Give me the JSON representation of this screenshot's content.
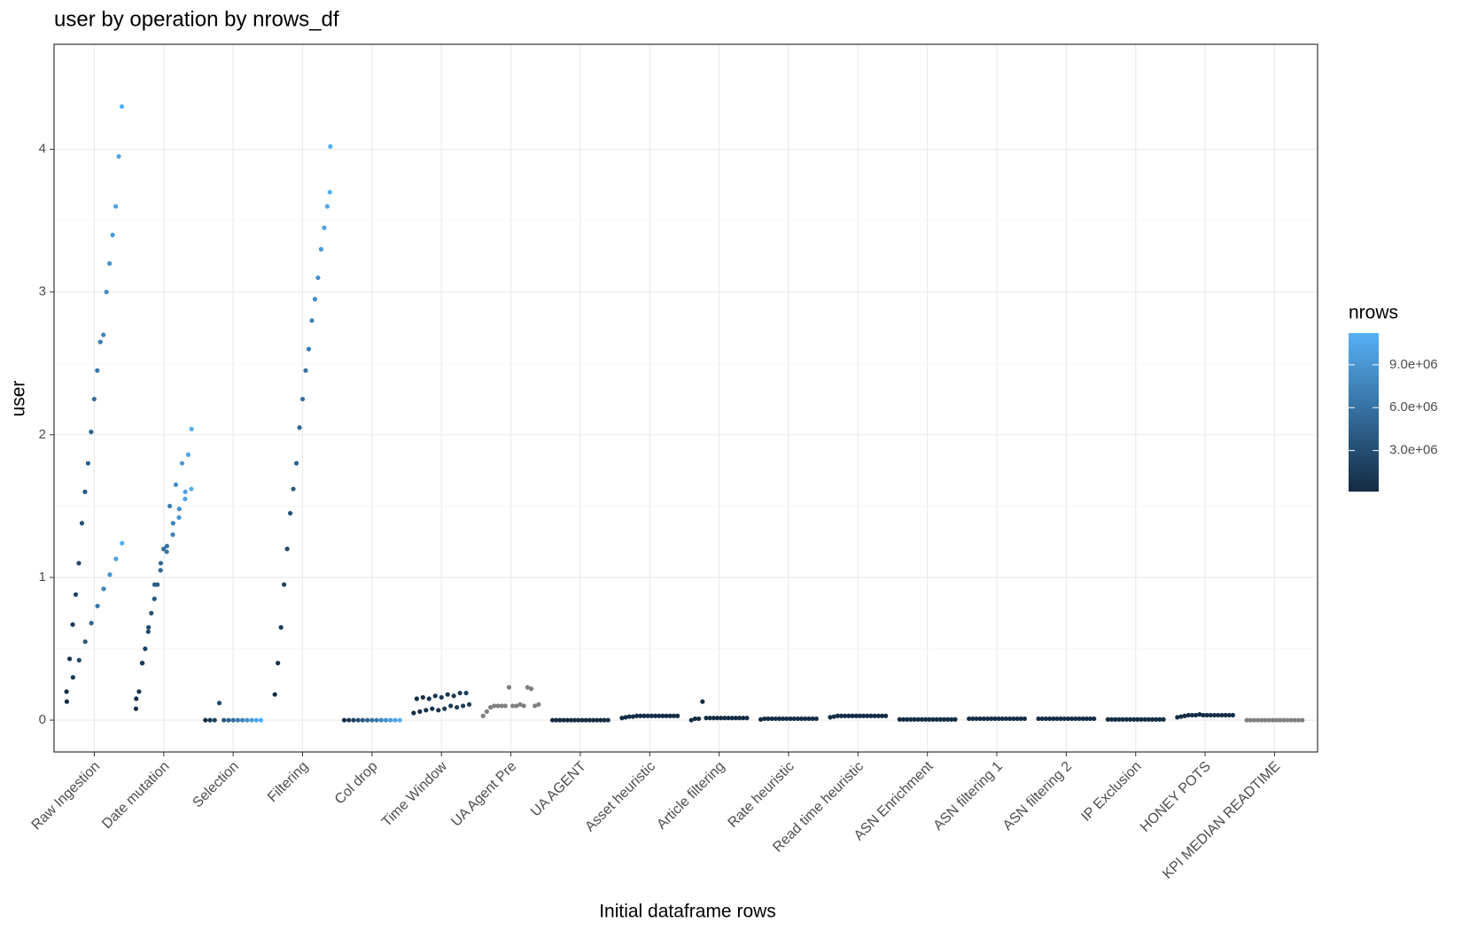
{
  "chart_data": {
    "type": "strip",
    "title": "user by operation by nrows_df",
    "x_label": "Initial dataframe rows",
    "y_label": "user",
    "ylim": [
      -0.223,
      4.736
    ],
    "yticks": [
      0,
      1,
      2,
      3,
      4
    ],
    "grid": true,
    "color_title": "nrows",
    "color_low": "#132B43",
    "color_high": "#56B1F7",
    "na_color": "#7f7f7f",
    "colorlim": [
      130000,
      11220000
    ],
    "colorticks": [
      {
        "value": 3000000,
        "label": "3.0e+06"
      },
      {
        "value": 6000000,
        "label": "6.0e+06"
      },
      {
        "value": 9000000,
        "label": "9.0e+06"
      }
    ],
    "groups": [
      {
        "name": "Raw Ingestion",
        "values": [
          0.2,
          0.13,
          0.43,
          0.67,
          0.3,
          0.88,
          1.1,
          0.42,
          1.38,
          1.6,
          0.55,
          1.8,
          2.02,
          0.68,
          2.25,
          2.45,
          0.8,
          2.65,
          2.7,
          0.92,
          3.0,
          3.2,
          1.02,
          3.4,
          3.6,
          1.13,
          3.95,
          4.3,
          1.24
        ],
        "nrows": [
          200000,
          250000,
          800000,
          1400000,
          1450000,
          2000000,
          2600000,
          2650000,
          3200000,
          3800000,
          3850000,
          4400000,
          5000000,
          5050000,
          5600000,
          6200000,
          6250000,
          6800000,
          7400000,
          7450000,
          8000000,
          8600000,
          8650000,
          9200000,
          9800000,
          9850000,
          10400000,
          11000000,
          11050000
        ]
      },
      {
        "name": "Date mutation",
        "values": [
          0.08,
          0.15,
          0.2,
          0.4,
          0.4,
          0.5,
          0.62,
          0.65,
          0.75,
          0.85,
          0.95,
          0.95,
          1.05,
          1.1,
          1.2,
          1.18,
          1.22,
          1.5,
          1.3,
          1.38,
          1.65,
          1.42,
          1.48,
          1.8,
          1.55,
          1.6,
          1.86,
          1.62,
          2.04
        ],
        "nrows": [
          200000,
          250000,
          800000,
          1400000,
          1450000,
          2000000,
          2600000,
          2650000,
          3200000,
          3800000,
          3850000,
          4400000,
          5000000,
          5050000,
          5600000,
          6200000,
          6250000,
          6800000,
          7400000,
          7450000,
          8000000,
          8600000,
          8650000,
          9200000,
          9800000,
          9850000,
          10400000,
          11000000,
          11050000
        ]
      },
      {
        "name": "Selection",
        "values": [
          0,
          0,
          0,
          0.12,
          0,
          0,
          0,
          0,
          0,
          0,
          0,
          0,
          0
        ],
        "nrows": [
          200000,
          1100000,
          2000000,
          2900000,
          3800000,
          4700000,
          5600000,
          6500000,
          7400000,
          8300000,
          9200000,
          10100000,
          11000000
        ]
      },
      {
        "name": "Filtering",
        "values": [
          0.18,
          0.4,
          0.65,
          0.95,
          1.2,
          1.45,
          1.62,
          1.8,
          2.05,
          2.25,
          2.45,
          2.6,
          2.8,
          2.95,
          3.1,
          3.3,
          3.45,
          3.6,
          3.7,
          4.02
        ],
        "nrows": [
          200000,
          800000,
          1400000,
          2000000,
          2600000,
          3200000,
          3800000,
          4400000,
          5000000,
          5600000,
          6200000,
          6800000,
          7400000,
          8000000,
          8600000,
          9200000,
          9800000,
          10400000,
          10900000,
          11000000
        ]
      },
      {
        "name": "Col drop",
        "values": [
          0,
          0,
          0,
          0,
          0,
          0,
          0,
          0,
          0,
          0,
          0,
          0,
          0
        ],
        "nrows": [
          200000,
          1100000,
          2000000,
          2900000,
          3800000,
          4700000,
          5600000,
          6500000,
          7400000,
          8300000,
          9200000,
          10100000,
          11000000
        ]
      },
      {
        "name": "Time Window",
        "values": [
          0.05,
          0.15,
          0.06,
          0.16,
          0.07,
          0.15,
          0.08,
          0.17,
          0.07,
          0.16,
          0.08,
          0.18,
          0.1,
          0.17,
          0.09,
          0.19,
          0.1,
          0.19,
          0.11
        ],
        "nrows": [
          200000,
          290000,
          380000,
          470000,
          560000,
          650000,
          740000,
          830000,
          920000,
          1010000,
          1100000,
          1190000,
          1280000,
          1370000,
          1460000,
          1550000,
          1640000,
          1730000,
          1820000
        ]
      },
      {
        "name": "UA Agent Pre",
        "values": [
          0.03,
          0.06,
          0.09,
          0.1,
          0.1,
          0.1,
          0.1,
          0.23,
          0.1,
          0.1,
          0.11,
          0.1,
          0.23,
          0.22,
          0.1,
          0.11
        ],
        "nrows": [
          null,
          null,
          null,
          null,
          null,
          null,
          null,
          null,
          null,
          null,
          null,
          null,
          null,
          null,
          null,
          null
        ]
      },
      {
        "name": "UA AGENT",
        "values": [
          0,
          0,
          0,
          0,
          0,
          0,
          0,
          0,
          0,
          0,
          0,
          0,
          0,
          0,
          0,
          0
        ],
        "nrows": [
          300000,
          300000,
          300000,
          300000,
          300000,
          300000,
          300000,
          300000,
          300000,
          300000,
          300000,
          300000,
          300000,
          300000,
          300000,
          300000
        ]
      },
      {
        "name": "Asset heuristic",
        "values": [
          0.015,
          0.02,
          0.025,
          0.025,
          0.03,
          0.03,
          0.03,
          0.03,
          0.03,
          0.03,
          0.03,
          0.03,
          0.03,
          0.03,
          0.03,
          0.03
        ],
        "nrows": [
          300000,
          300000,
          300000,
          300000,
          300000,
          300000,
          300000,
          300000,
          300000,
          300000,
          300000,
          300000,
          300000,
          300000,
          300000,
          300000
        ]
      },
      {
        "name": "Article filtering",
        "values": [
          0,
          0.01,
          0.01,
          0.13,
          0.015,
          0.015,
          0.015,
          0.015,
          0.015,
          0.015,
          0.015,
          0.015,
          0.015,
          0.015,
          0.015,
          0.015
        ],
        "nrows": [
          300000,
          300000,
          300000,
          300000,
          300000,
          300000,
          300000,
          300000,
          300000,
          300000,
          300000,
          300000,
          300000,
          300000,
          300000,
          300000
        ]
      },
      {
        "name": "Rate heuristic",
        "values": [
          0.005,
          0.01,
          0.01,
          0.01,
          0.01,
          0.01,
          0.01,
          0.01,
          0.01,
          0.01,
          0.01,
          0.01,
          0.01,
          0.01,
          0.01,
          0.01
        ],
        "nrows": [
          300000,
          300000,
          300000,
          300000,
          300000,
          300000,
          300000,
          300000,
          300000,
          300000,
          300000,
          300000,
          300000,
          300000,
          300000,
          300000
        ]
      },
      {
        "name": "Read time heuristic",
        "values": [
          0.02,
          0.025,
          0.03,
          0.03,
          0.03,
          0.03,
          0.03,
          0.03,
          0.03,
          0.03,
          0.03,
          0.03,
          0.03,
          0.03,
          0.03,
          0.03
        ],
        "nrows": [
          300000,
          300000,
          300000,
          300000,
          300000,
          300000,
          300000,
          300000,
          300000,
          300000,
          300000,
          300000,
          300000,
          300000,
          300000,
          300000
        ]
      },
      {
        "name": "ASN Enrichment",
        "values": [
          0.005,
          0.005,
          0.005,
          0.005,
          0.005,
          0.005,
          0.005,
          0.005,
          0.005,
          0.005,
          0.005,
          0.005,
          0.005,
          0.005,
          0.005,
          0.005
        ],
        "nrows": [
          300000,
          300000,
          300000,
          300000,
          300000,
          300000,
          300000,
          300000,
          300000,
          300000,
          300000,
          300000,
          300000,
          300000,
          300000,
          300000
        ]
      },
      {
        "name": "ASN filtering 1",
        "values": [
          0.01,
          0.01,
          0.01,
          0.01,
          0.01,
          0.01,
          0.01,
          0.01,
          0.01,
          0.01,
          0.01,
          0.01,
          0.01,
          0.01,
          0.01,
          0.01
        ],
        "nrows": [
          300000,
          300000,
          300000,
          300000,
          300000,
          300000,
          300000,
          300000,
          300000,
          300000,
          300000,
          300000,
          300000,
          300000,
          300000,
          300000
        ]
      },
      {
        "name": "ASN filtering 2",
        "values": [
          0.01,
          0.01,
          0.01,
          0.01,
          0.01,
          0.01,
          0.01,
          0.01,
          0.01,
          0.01,
          0.01,
          0.01,
          0.01,
          0.01,
          0.01,
          0.01
        ],
        "nrows": [
          300000,
          300000,
          300000,
          300000,
          300000,
          300000,
          300000,
          300000,
          300000,
          300000,
          300000,
          300000,
          300000,
          300000,
          300000,
          300000
        ]
      },
      {
        "name": "IP Exclusion",
        "values": [
          0.005,
          0.005,
          0.005,
          0.005,
          0.005,
          0.005,
          0.005,
          0.005,
          0.005,
          0.005,
          0.005,
          0.005,
          0.005,
          0.005,
          0.005,
          0.005
        ],
        "nrows": [
          300000,
          300000,
          300000,
          300000,
          300000,
          300000,
          300000,
          300000,
          300000,
          300000,
          300000,
          300000,
          300000,
          300000,
          300000,
          300000
        ]
      },
      {
        "name": "HONEY POTS",
        "values": [
          0.02,
          0.025,
          0.03,
          0.035,
          0.035,
          0.035,
          0.04,
          0.035,
          0.035,
          0.035,
          0.035,
          0.035,
          0.035,
          0.035,
          0.035,
          0.035
        ],
        "nrows": [
          300000,
          300000,
          300000,
          300000,
          300000,
          300000,
          300000,
          300000,
          300000,
          300000,
          300000,
          300000,
          300000,
          300000,
          300000,
          300000
        ]
      },
      {
        "name": "KPI MEDIAN READTIME",
        "values": [
          0,
          0,
          0,
          0,
          0,
          0,
          0,
          0,
          0,
          0,
          0,
          0,
          0,
          0,
          0,
          0
        ],
        "nrows": [
          null,
          null,
          null,
          null,
          null,
          null,
          null,
          null,
          null,
          null,
          null,
          null,
          null,
          null,
          null,
          null
        ]
      }
    ]
  }
}
